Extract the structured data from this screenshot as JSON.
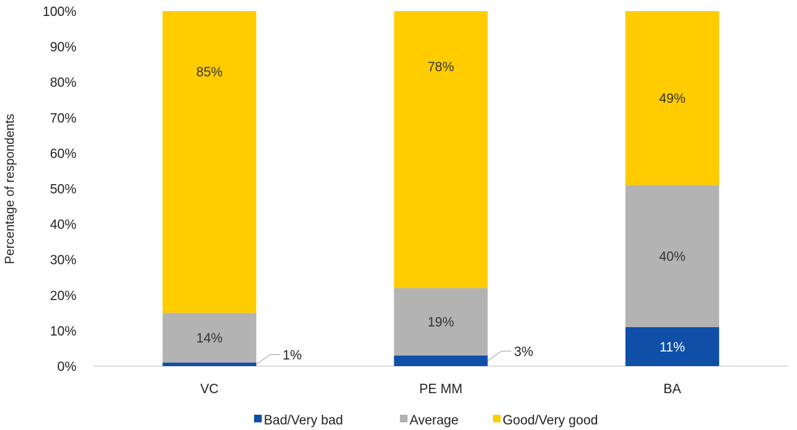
{
  "chart_data": {
    "type": "bar",
    "stacked": true,
    "categories": [
      "VC",
      "PE MM",
      "BA"
    ],
    "series": [
      {
        "name": "Bad/Very bad",
        "values": [
          1,
          3,
          11
        ],
        "labels": [
          "1%",
          "3%",
          "11%"
        ],
        "color": "#0f4fa8"
      },
      {
        "name": "Average",
        "values": [
          14,
          19,
          40
        ],
        "labels": [
          "14%",
          "19%",
          "40%"
        ],
        "color": "#b3b3b3"
      },
      {
        "name": "Good/Very good",
        "values": [
          85,
          78,
          49
        ],
        "labels": [
          "85%",
          "78%",
          "49%"
        ],
        "color": "#ffcc00"
      }
    ],
    "ylabel": "Percentage of respondents",
    "ylim": [
      0,
      100
    ],
    "yticks": [
      "0%",
      "10%",
      "20%",
      "30%",
      "40%",
      "50%",
      "60%",
      "70%",
      "80%",
      "90%",
      "100%"
    ],
    "grid": false,
    "legend_position": "bottom"
  }
}
